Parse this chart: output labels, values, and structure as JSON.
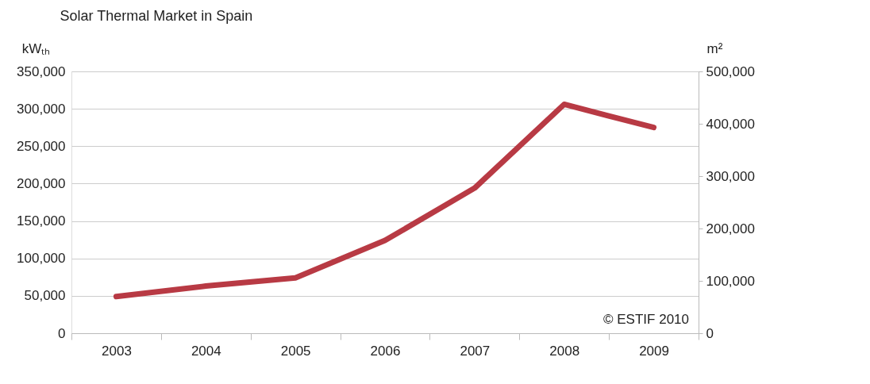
{
  "chart_data": {
    "type": "line",
    "title": "Solar Thermal Market in Spain",
    "ylabel": "kWₜₕ",
    "y2label": "m²",
    "categories": [
      "2003",
      "2004",
      "2005",
      "2006",
      "2007",
      "2008",
      "2009"
    ],
    "series": [
      {
        "color": "#b83a44",
        "values": [
          49000,
          63000,
          74000,
          124000,
          194000,
          306000,
          275000
        ]
      }
    ],
    "ylim": [
      0,
      350000
    ],
    "yticks": [
      0,
      {
        "value": 50000,
        "label": "50,000"
      },
      {
        "value": 100000,
        "label": "100,000"
      },
      {
        "value": 150000,
        "label": "150,000"
      },
      {
        "value": 200000,
        "label": "200,000"
      },
      {
        "value": 250000,
        "label": "250,000"
      },
      {
        "value": 300000,
        "label": "300,000"
      },
      {
        "value": 350000,
        "label": "350,000"
      }
    ],
    "y2lim": [
      0,
      500000
    ],
    "y2ticks": [
      0,
      {
        "value": 100000,
        "label": "100,000"
      },
      {
        "value": 200000,
        "label": "200,000"
      },
      {
        "value": 300000,
        "label": "300,000"
      },
      {
        "value": 400000,
        "label": "400,000"
      },
      {
        "value": 500000,
        "label": "500,000"
      }
    ],
    "grid": "y",
    "legend": false,
    "marker": "none",
    "line_style": "solid",
    "annotations": [
      "© ESTIF 2010"
    ]
  }
}
